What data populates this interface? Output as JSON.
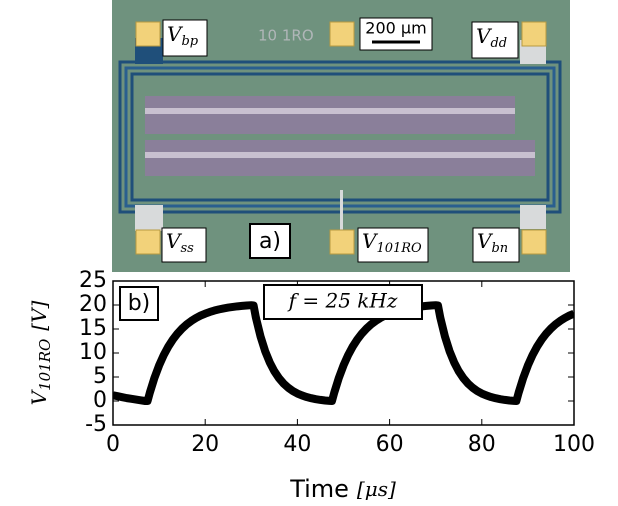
{
  "micrograph": {
    "chip_name": "10 1RO",
    "scale_bar": "200 µm",
    "panel": "a)",
    "labels": [
      {
        "main": "V",
        "sub": "bp"
      },
      {
        "main": "V",
        "sub": "dd"
      },
      {
        "main": "V",
        "sub": "ss"
      },
      {
        "main": "V",
        "sub": "101RO"
      },
      {
        "main": "V",
        "sub": "bn"
      }
    ]
  },
  "chart_data": {
    "type": "line",
    "panel": "b)",
    "annotation": "f = 25 kHz",
    "xlabel": {
      "main": "Time",
      "unit": "[μs]"
    },
    "ylabel": {
      "main": "V",
      "sub": "101RO",
      "unit": "[V]"
    },
    "color": "#000000",
    "xlim": [
      0,
      100
    ],
    "xticks": [
      0,
      20,
      40,
      60,
      80,
      100
    ],
    "ylim": [
      -5,
      25
    ],
    "yticks": [
      -5,
      0,
      5,
      10,
      15,
      20,
      25
    ],
    "x": [
      0,
      1,
      2,
      3,
      4,
      5,
      6,
      7,
      7.5,
      8,
      9,
      10,
      11,
      12,
      13,
      14,
      15,
      16,
      17,
      18,
      19,
      20,
      21,
      22,
      23,
      24,
      25,
      26,
      27,
      28,
      29,
      30,
      30.5,
      31,
      32,
      33,
      34,
      35,
      36,
      37,
      38,
      39,
      40,
      41,
      42,
      43,
      44,
      45,
      46,
      47,
      47.5,
      48,
      49,
      50,
      51,
      52,
      53,
      54,
      55,
      56,
      57,
      58,
      59,
      60,
      61,
      62,
      63,
      64,
      65,
      66,
      67,
      68,
      69,
      70,
      70.5,
      71,
      72,
      73,
      74,
      75,
      76,
      77,
      78,
      79,
      80,
      81,
      82,
      83,
      84,
      85,
      86,
      87,
      87.5,
      88,
      89,
      90,
      91,
      92,
      93,
      94,
      95,
      96,
      97,
      98,
      99,
      100
    ],
    "values": [
      1.2,
      1.0,
      0.8,
      0.6,
      0.45,
      0.3,
      0.15,
      0.0,
      0.0,
      1.77,
      4.85,
      7.41,
      9.56,
      11.34,
      12.83,
      14.07,
      15.1,
      15.97,
      16.69,
      17.29,
      17.79,
      18.2,
      18.55,
      18.85,
      19.09,
      19.29,
      19.46,
      19.6,
      19.72,
      19.81,
      19.89,
      19.96,
      19.9,
      17.35,
      13.45,
      10.4,
      8.04,
      6.19,
      4.76,
      3.64,
      2.77,
      2.09,
      1.56,
      1.15,
      0.83,
      0.58,
      0.38,
      0.23,
      0.11,
      0.02,
      0.0,
      1.77,
      4.85,
      7.41,
      9.56,
      11.34,
      12.83,
      14.07,
      15.1,
      15.97,
      16.69,
      17.29,
      17.79,
      18.2,
      18.55,
      18.85,
      19.09,
      19.29,
      19.46,
      19.6,
      19.72,
      19.81,
      19.89,
      19.96,
      19.9,
      17.35,
      13.45,
      10.4,
      8.04,
      6.19,
      4.76,
      3.64,
      2.77,
      2.09,
      1.56,
      1.15,
      0.83,
      0.58,
      0.38,
      0.23,
      0.11,
      0.02,
      0.0,
      1.77,
      4.85,
      7.41,
      9.56,
      11.34,
      12.83,
      14.07,
      15.1,
      15.97,
      16.69,
      17.29,
      17.79,
      18.2
    ]
  }
}
